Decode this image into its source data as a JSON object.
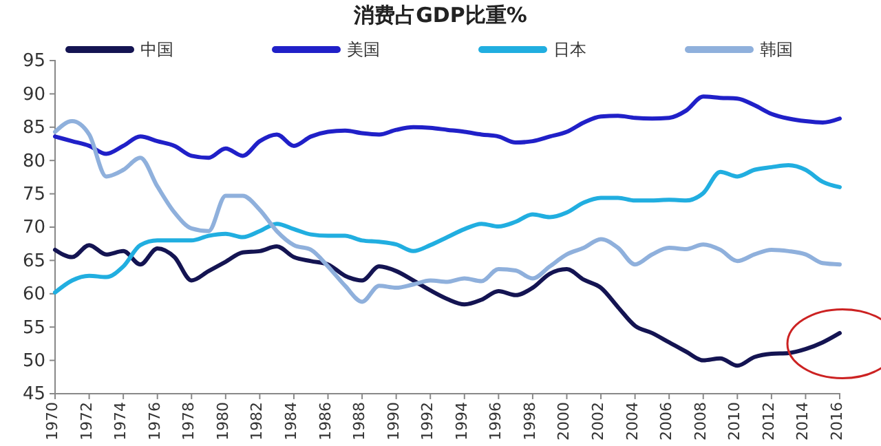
{
  "chart_data": {
    "type": "line",
    "title": "消费占GDP比重%",
    "x": [
      1970,
      1971,
      1972,
      1973,
      1974,
      1975,
      1976,
      1977,
      1978,
      1979,
      1980,
      1981,
      1982,
      1983,
      1984,
      1985,
      1986,
      1987,
      1988,
      1989,
      1990,
      1991,
      1992,
      1993,
      1994,
      1995,
      1996,
      1997,
      1998,
      1999,
      2000,
      2001,
      2002,
      2003,
      2004,
      2005,
      2006,
      2007,
      2008,
      2009,
      2010,
      2011,
      2012,
      2013,
      2014,
      2015,
      2016
    ],
    "series": [
      {
        "name": "中国",
        "color": "#141452",
        "values": [
          66.6,
          65.5,
          67.3,
          65.9,
          66.4,
          64.4,
          66.8,
          65.5,
          62,
          63.4,
          64.8,
          66.2,
          66.4,
          67.1,
          65.5,
          64.9,
          64.4,
          62.7,
          62,
          64.1,
          63.4,
          62,
          60.5,
          59.2,
          58.4,
          59.1,
          60.4,
          59.8,
          60.9,
          63,
          63.7,
          62.1,
          60.9,
          58,
          55.2,
          54.1,
          52.7,
          51.3,
          50,
          50.3,
          49.2,
          50.5,
          51,
          51.1,
          51.7,
          52.7,
          54.1
        ]
      },
      {
        "name": "美国",
        "color": "#2020c8",
        "values": [
          83.6,
          82.9,
          82.2,
          81,
          82.2,
          83.6,
          82.9,
          82.2,
          80.7,
          80.4,
          81.8,
          80.7,
          82.9,
          83.9,
          82.2,
          83.6,
          84.3,
          84.5,
          84.1,
          83.9,
          84.6,
          85,
          84.9,
          84.6,
          84.3,
          83.9,
          83.6,
          82.7,
          82.9,
          83.6,
          84.3,
          85.7,
          86.6,
          86.7,
          86.4,
          86.3,
          86.4,
          87.5,
          89.6,
          89.4,
          89.3,
          88.3,
          87,
          86.3,
          85.9,
          85.7,
          86.3
        ]
      },
      {
        "name": "日本",
        "color": "#21aee0",
        "values": [
          60.2,
          62,
          62.7,
          62.5,
          64.1,
          67.3,
          68,
          68,
          68,
          68.7,
          69,
          68.5,
          69.4,
          70.5,
          69.7,
          68.9,
          68.7,
          68.7,
          68,
          67.8,
          67.4,
          66.4,
          67.3,
          68.5,
          69.7,
          70.5,
          70.1,
          70.8,
          71.9,
          71.5,
          72.2,
          73.7,
          74.4,
          74.4,
          74,
          74,
          74.1,
          74,
          75.1,
          78.3,
          77.6,
          78.6,
          79,
          79.3,
          78.6,
          76.8,
          76
        ]
      },
      {
        "name": "韩国",
        "color": "#8fb0dc",
        "values": [
          84.3,
          85.9,
          83.9,
          77.6,
          78.6,
          80.4,
          76.1,
          72.2,
          69.8,
          69.4,
          74.7,
          74.7,
          72.6,
          69.4,
          67.3,
          66.6,
          64.1,
          61.2,
          58.8,
          61.2,
          60.9,
          61.4,
          62,
          61.8,
          62.3,
          61.9,
          63.7,
          63.5,
          62.3,
          64.1,
          65.9,
          66.9,
          68.2,
          66.9,
          64.4,
          65.9,
          66.9,
          66.7,
          67.4,
          66.6,
          64.9,
          65.9,
          66.6,
          66.4,
          65.9,
          64.6,
          64.4
        ]
      }
    ],
    "xlim": [
      1970,
      2016
    ],
    "xticks": [
      1970,
      1972,
      1974,
      1976,
      1978,
      1980,
      1982,
      1984,
      1986,
      1988,
      1990,
      1992,
      1994,
      1996,
      1998,
      2000,
      2002,
      2004,
      2006,
      2008,
      2010,
      2012,
      2014,
      2016
    ],
    "ylim": [
      45,
      95
    ],
    "yticks": [
      45,
      50,
      55,
      60,
      65,
      70,
      75,
      80,
      85,
      90,
      95
    ],
    "grid": false,
    "legend": "top",
    "marker": "none",
    "line_style": "solid"
  }
}
